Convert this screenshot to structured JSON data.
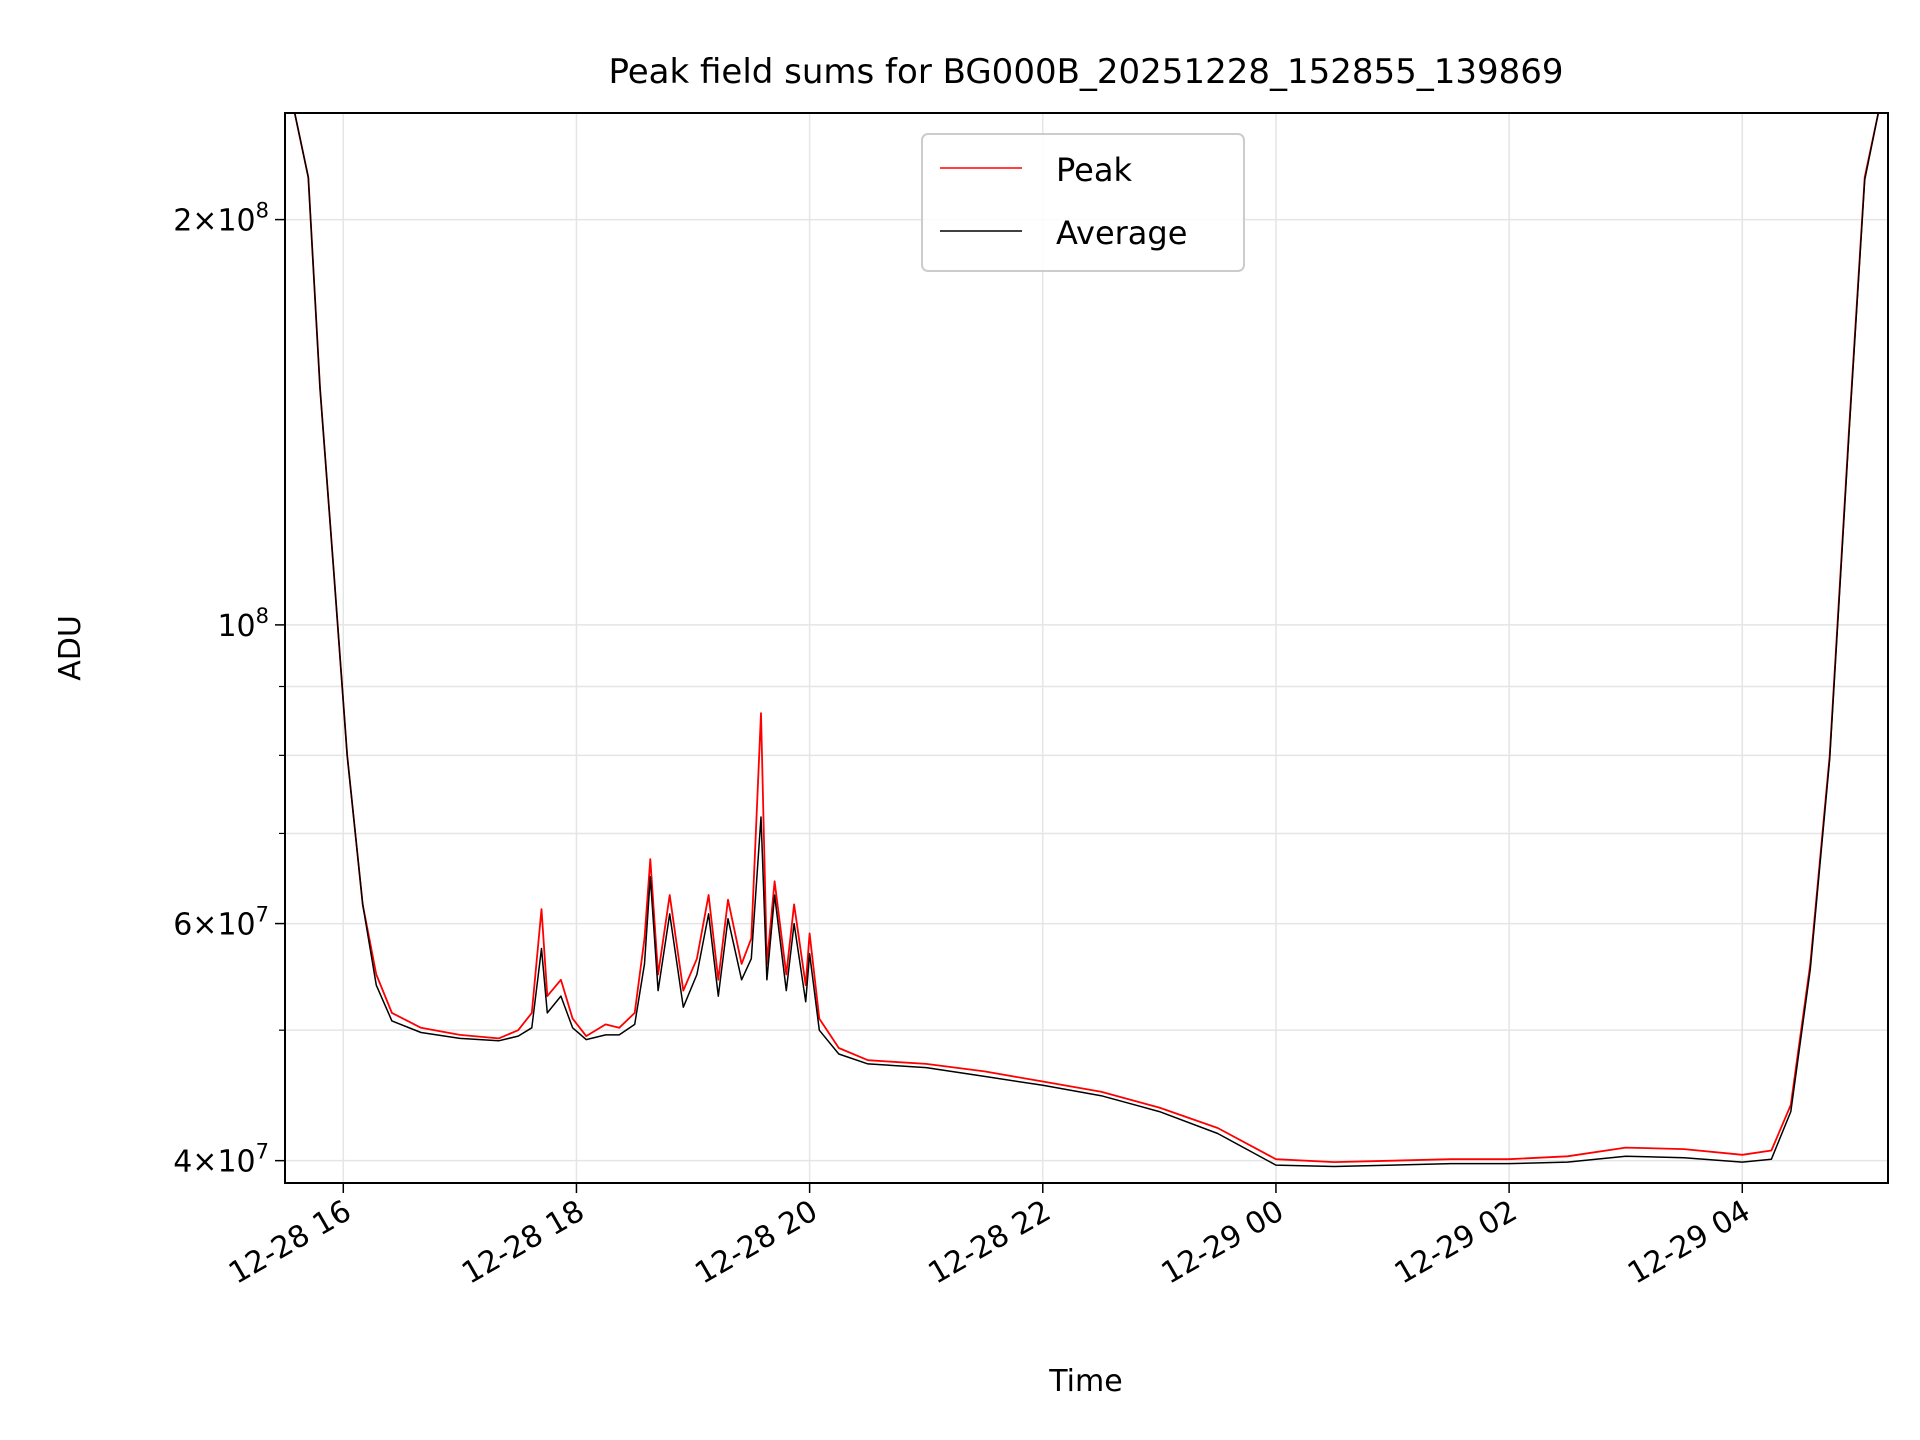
{
  "chart_data": {
    "type": "line",
    "title": "Peak field sums for BG000B_20251228_152855_139869",
    "xlabel": "Time",
    "ylabel": "ADU",
    "y_scale": "log",
    "ylim": [
      38500000,
      240000000
    ],
    "xlim": [
      "2025-12-28 15:30",
      "2025-12-29 05:15"
    ],
    "x_ticks": [
      {
        "t": "2025-12-28 16:00",
        "label": "12-28 16"
      },
      {
        "t": "2025-12-28 18:00",
        "label": "12-28 18"
      },
      {
        "t": "2025-12-28 20:00",
        "label": "12-28 20"
      },
      {
        "t": "2025-12-28 22:00",
        "label": "12-28 22"
      },
      {
        "t": "2025-12-29 00:00",
        "label": "12-29 00"
      },
      {
        "t": "2025-12-29 02:00",
        "label": "12-29 02"
      },
      {
        "t": "2025-12-29 04:00",
        "label": "12-29 04"
      }
    ],
    "y_major_ticks": [
      {
        "v": 40000000,
        "mant": "4",
        "exp": "7"
      },
      {
        "v": 60000000,
        "mant": "6",
        "exp": "7"
      },
      {
        "v": 100000000,
        "mant": "",
        "exp": "8"
      },
      {
        "v": 200000000,
        "mant": "2",
        "exp": "8"
      }
    ],
    "y_minor_ticks": [
      50000000,
      70000000,
      80000000,
      90000000
    ],
    "grid": true,
    "legend": {
      "position": "top-center",
      "entries": [
        "Peak",
        "Average"
      ]
    },
    "series": [
      {
        "name": "Peak",
        "color": "#ff0000",
        "points": [
          [
            "2025-12-28 15:35",
            240000000
          ],
          [
            "2025-12-28 15:42",
            215000000
          ],
          [
            "2025-12-28 15:48",
            150000000
          ],
          [
            "2025-12-28 15:55",
            110000000
          ],
          [
            "2025-12-28 16:02",
            80000000
          ],
          [
            "2025-12-28 16:10",
            62000000
          ],
          [
            "2025-12-28 16:17",
            55000000
          ],
          [
            "2025-12-28 16:25",
            51500000
          ],
          [
            "2025-12-28 16:40",
            50200000
          ],
          [
            "2025-12-28 17:00",
            49600000
          ],
          [
            "2025-12-28 17:20",
            49300000
          ],
          [
            "2025-12-28 17:30",
            50000000
          ],
          [
            "2025-12-28 17:37",
            51500000
          ],
          [
            "2025-12-28 17:42",
            61500000
          ],
          [
            "2025-12-28 17:45",
            53000000
          ],
          [
            "2025-12-28 17:52",
            54500000
          ],
          [
            "2025-12-28 17:58",
            51000000
          ],
          [
            "2025-12-28 18:05",
            49500000
          ],
          [
            "2025-12-28 18:15",
            50500000
          ],
          [
            "2025-12-28 18:22",
            50200000
          ],
          [
            "2025-12-28 18:30",
            51500000
          ],
          [
            "2025-12-28 18:35",
            58500000
          ],
          [
            "2025-12-28 18:38",
            67000000
          ],
          [
            "2025-12-28 18:42",
            55000000
          ],
          [
            "2025-12-28 18:48",
            63000000
          ],
          [
            "2025-12-28 18:55",
            53500000
          ],
          [
            "2025-12-28 19:02",
            56500000
          ],
          [
            "2025-12-28 19:08",
            63000000
          ],
          [
            "2025-12-28 19:13",
            54500000
          ],
          [
            "2025-12-28 19:18",
            62500000
          ],
          [
            "2025-12-28 19:25",
            56000000
          ],
          [
            "2025-12-28 19:30",
            58500000
          ],
          [
            "2025-12-28 19:35",
            86000000
          ],
          [
            "2025-12-28 19:38",
            56000000
          ],
          [
            "2025-12-28 19:42",
            64500000
          ],
          [
            "2025-12-28 19:48",
            55000000
          ],
          [
            "2025-12-28 19:52",
            62000000
          ],
          [
            "2025-12-28 19:58",
            54000000
          ],
          [
            "2025-12-28 20:00",
            59000000
          ],
          [
            "2025-12-28 20:05",
            51000000
          ],
          [
            "2025-12-28 20:15",
            48500000
          ],
          [
            "2025-12-28 20:30",
            47500000
          ],
          [
            "2025-12-28 21:00",
            47200000
          ],
          [
            "2025-12-28 21:30",
            46600000
          ],
          [
            "2025-12-28 22:00",
            45800000
          ],
          [
            "2025-12-28 22:30",
            45000000
          ],
          [
            "2025-12-28 23:00",
            43800000
          ],
          [
            "2025-12-28 23:30",
            42300000
          ],
          [
            "2025-12-29 00:00",
            40100000
          ],
          [
            "2025-12-29 00:30",
            39900000
          ],
          [
            "2025-12-29 01:00",
            40000000
          ],
          [
            "2025-12-29 01:30",
            40100000
          ],
          [
            "2025-12-29 02:00",
            40100000
          ],
          [
            "2025-12-29 02:30",
            40300000
          ],
          [
            "2025-12-29 03:00",
            40900000
          ],
          [
            "2025-12-29 03:30",
            40800000
          ],
          [
            "2025-12-29 04:00",
            40400000
          ],
          [
            "2025-12-29 04:15",
            40700000
          ],
          [
            "2025-12-29 04:25",
            44000000
          ],
          [
            "2025-12-29 04:35",
            56000000
          ],
          [
            "2025-12-29 04:45",
            80000000
          ],
          [
            "2025-12-29 04:55",
            140000000
          ],
          [
            "2025-12-29 05:03",
            215000000
          ],
          [
            "2025-12-29 05:10",
            240000000
          ]
        ]
      },
      {
        "name": "Average",
        "color": "#000000",
        "points": [
          [
            "2025-12-28 15:35",
            240000000
          ],
          [
            "2025-12-28 15:42",
            215000000
          ],
          [
            "2025-12-28 15:48",
            150000000
          ],
          [
            "2025-12-28 15:55",
            110000000
          ],
          [
            "2025-12-28 16:02",
            80000000
          ],
          [
            "2025-12-28 16:10",
            62000000
          ],
          [
            "2025-12-28 16:17",
            54000000
          ],
          [
            "2025-12-28 16:25",
            50800000
          ],
          [
            "2025-12-28 16:40",
            49800000
          ],
          [
            "2025-12-28 17:00",
            49300000
          ],
          [
            "2025-12-28 17:20",
            49100000
          ],
          [
            "2025-12-28 17:30",
            49500000
          ],
          [
            "2025-12-28 17:37",
            50200000
          ],
          [
            "2025-12-28 17:42",
            57500000
          ],
          [
            "2025-12-28 17:45",
            51500000
          ],
          [
            "2025-12-28 17:52",
            53000000
          ],
          [
            "2025-12-28 17:58",
            50200000
          ],
          [
            "2025-12-28 18:05",
            49200000
          ],
          [
            "2025-12-28 18:15",
            49600000
          ],
          [
            "2025-12-28 18:22",
            49600000
          ],
          [
            "2025-12-28 18:30",
            50500000
          ],
          [
            "2025-12-28 18:35",
            56000000
          ],
          [
            "2025-12-28 18:38",
            65000000
          ],
          [
            "2025-12-28 18:42",
            53500000
          ],
          [
            "2025-12-28 18:48",
            61000000
          ],
          [
            "2025-12-28 18:55",
            52000000
          ],
          [
            "2025-12-28 19:02",
            55000000
          ],
          [
            "2025-12-28 19:08",
            61000000
          ],
          [
            "2025-12-28 19:13",
            53000000
          ],
          [
            "2025-12-28 19:18",
            60500000
          ],
          [
            "2025-12-28 19:25",
            54500000
          ],
          [
            "2025-12-28 19:30",
            56500000
          ],
          [
            "2025-12-28 19:35",
            72000000
          ],
          [
            "2025-12-28 19:38",
            54500000
          ],
          [
            "2025-12-28 19:42",
            63000000
          ],
          [
            "2025-12-28 19:48",
            53500000
          ],
          [
            "2025-12-28 19:52",
            60000000
          ],
          [
            "2025-12-28 19:58",
            52500000
          ],
          [
            "2025-12-28 20:00",
            57000000
          ],
          [
            "2025-12-28 20:05",
            50000000
          ],
          [
            "2025-12-28 20:15",
            48000000
          ],
          [
            "2025-12-28 20:30",
            47200000
          ],
          [
            "2025-12-28 21:00",
            46900000
          ],
          [
            "2025-12-28 21:30",
            46200000
          ],
          [
            "2025-12-28 22:00",
            45500000
          ],
          [
            "2025-12-28 22:30",
            44700000
          ],
          [
            "2025-12-28 23:00",
            43500000
          ],
          [
            "2025-12-28 23:30",
            41900000
          ],
          [
            "2025-12-29 00:00",
            39700000
          ],
          [
            "2025-12-29 00:30",
            39600000
          ],
          [
            "2025-12-29 01:00",
            39700000
          ],
          [
            "2025-12-29 01:30",
            39800000
          ],
          [
            "2025-12-29 02:00",
            39800000
          ],
          [
            "2025-12-29 02:30",
            39900000
          ],
          [
            "2025-12-29 03:00",
            40300000
          ],
          [
            "2025-12-29 03:30",
            40200000
          ],
          [
            "2025-12-29 04:00",
            39900000
          ],
          [
            "2025-12-29 04:15",
            40100000
          ],
          [
            "2025-12-29 04:25",
            43500000
          ],
          [
            "2025-12-29 04:35",
            55500000
          ],
          [
            "2025-12-29 04:45",
            79500000
          ],
          [
            "2025-12-29 04:55",
            139000000
          ],
          [
            "2025-12-29 05:03",
            214000000
          ],
          [
            "2025-12-29 05:10",
            240000000
          ]
        ]
      }
    ]
  }
}
